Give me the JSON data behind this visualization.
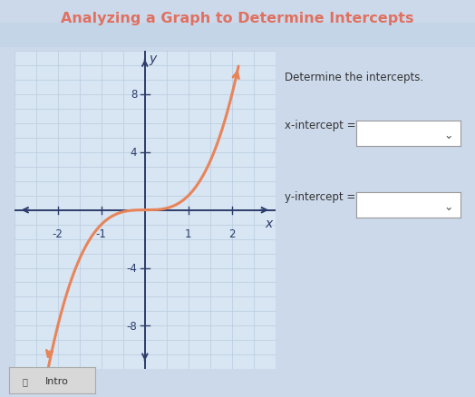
{
  "title": "Analyzing a Graph to Determine Intercepts",
  "title_color": "#e07060",
  "bg_color": "#ccd9ea",
  "graph_bg_color": "#d8e5f2",
  "grid_color": "#b8cce0",
  "axis_color": "#2d3d6b",
  "curve_color": "#e8845a",
  "x_ticks": [
    -2,
    -1,
    1,
    2
  ],
  "y_ticks": [
    -8,
    -4,
    4,
    8
  ],
  "xlim": [
    -3.0,
    3.0
  ],
  "ylim": [
    -11.0,
    11.0
  ],
  "side_text": "Determine the intercepts.",
  "x_intercept_label": "x-intercept =",
  "y_intercept_label": "y-intercept ="
}
